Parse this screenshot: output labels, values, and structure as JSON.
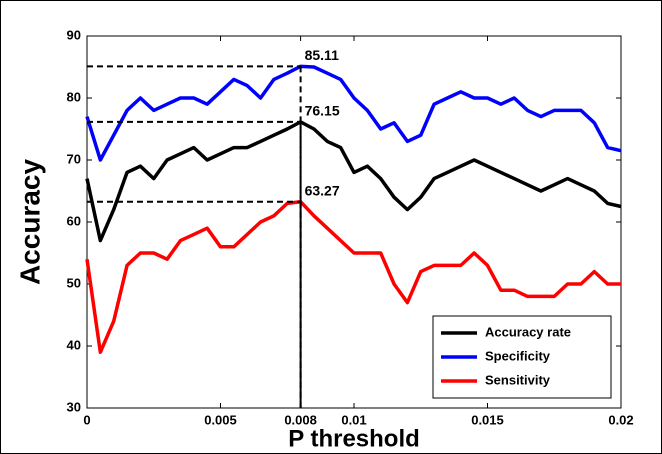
{
  "chart_data": {
    "type": "line",
    "xlabel": "P threshold",
    "ylabel": "Accuracy",
    "x": [
      0,
      0.0005,
      0.001,
      0.0015,
      0.002,
      0.0025,
      0.003,
      0.0035,
      0.004,
      0.0045,
      0.005,
      0.0055,
      0.006,
      0.0065,
      0.007,
      0.0075,
      0.008,
      0.0085,
      0.009,
      0.0095,
      0.01,
      0.0105,
      0.011,
      0.0115,
      0.012,
      0.0125,
      0.013,
      0.0135,
      0.014,
      0.0145,
      0.015,
      0.0155,
      0.016,
      0.0165,
      0.017,
      0.0175,
      0.018,
      0.0185,
      0.019,
      0.0195,
      0.02
    ],
    "series": [
      {
        "name": "Accuracy rate",
        "color": "#000000",
        "values": [
          67,
          57,
          62,
          68,
          69,
          67,
          70,
          71,
          72,
          70,
          71,
          72,
          72,
          73,
          74,
          75,
          76.15,
          75,
          73,
          72,
          68,
          69,
          67,
          64,
          62,
          64,
          67,
          68,
          69,
          70,
          69,
          68,
          67,
          66,
          65,
          66,
          67,
          66,
          65,
          63,
          62.5
        ]
      },
      {
        "name": "Specificity",
        "color": "#0000ff",
        "values": [
          77,
          70,
          74,
          78,
          80,
          78,
          79,
          80,
          80,
          79,
          81,
          83,
          82,
          80,
          83,
          84,
          85.11,
          85,
          84,
          83,
          80,
          78,
          75,
          76,
          73,
          74,
          79,
          80,
          81,
          80,
          80,
          79,
          80,
          78,
          77,
          78,
          78,
          78,
          76,
          72,
          71.5
        ]
      },
      {
        "name": "Sensitivity",
        "color": "#ff0000",
        "values": [
          54,
          39,
          44,
          53,
          55,
          55,
          54,
          57,
          58,
          59,
          56,
          56,
          58,
          60,
          61,
          63,
          63.27,
          61,
          59,
          57,
          55,
          55,
          55,
          50,
          47,
          52,
          53,
          53,
          53,
          55,
          53,
          49,
          49,
          48,
          48,
          48,
          50,
          50,
          52,
          50,
          50
        ]
      }
    ],
    "annotations": [
      {
        "x": 0.008,
        "y": 85.11
      },
      {
        "x": 0.008,
        "y": 76.15
      },
      {
        "x": 0.008,
        "y": 63.27
      }
    ],
    "xlim": [
      0,
      0.02
    ],
    "xticks": [
      0,
      0.005,
      0.008,
      0.01,
      0.015,
      0.02
    ],
    "ylim": [
      30,
      90
    ],
    "yticks": [
      30,
      40,
      50,
      60,
      70,
      80,
      90
    ],
    "legend": "lower right",
    "grid": false
  }
}
